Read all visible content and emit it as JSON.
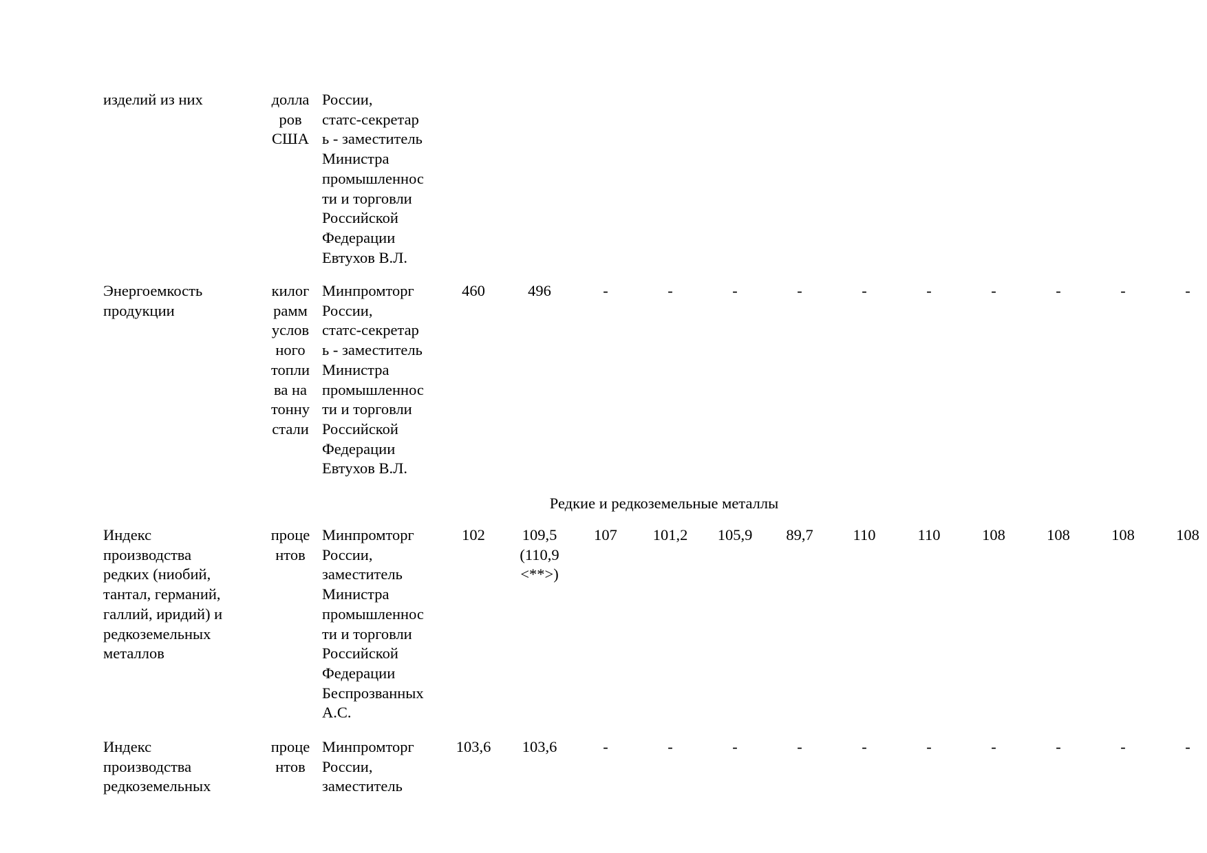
{
  "rows": [
    {
      "name": "изделий из них",
      "unit": "долла\nров\nСША",
      "responsible": "России,\nстатс-секретар\nь - заместитель\nМинистра\nпромышленнос\nти и торговли\nРоссийской\nФедерации\nЕвтухов В.Л.",
      "values": []
    },
    {
      "name": "Энергоемкость\nпродукции",
      "unit": "килог\nрамм\nуслов\nного\nтопли\nва на\nтонну\nстали",
      "responsible": "Минпромторг\nРоссии,\nстатс-секретар\nь - заместитель\nМинистра\nпромышленнос\nти и торговли\nРоссийской\nФедерации\nЕвтухов В.Л.",
      "values": [
        "460",
        "496",
        "-",
        "-",
        "-",
        "-",
        "-",
        "-",
        "-",
        "-",
        "-",
        "-"
      ]
    },
    {
      "name": "Индекс\nпроизводства\nредких (ниобий,\nтантал, германий,\nгаллий, иридий) и\nредкоземельных\nметаллов",
      "unit": "проце\nнтов",
      "responsible": "Минпромторг\nРоссии,\nзаместитель\nМинистра\nпромышленнос\nти и торговли\nРоссийской\nФедерации\nБеспрозванных\nА.С.",
      "values": [
        "102",
        "109,5\n(110,9\n<**>)",
        "107",
        "101,2",
        "105,9",
        "89,7",
        "110",
        "110",
        "108",
        "108",
        "108",
        "108"
      ]
    },
    {
      "name": "Индекс\nпроизводства\nредкоземельных",
      "unit": "проце\nнтов",
      "responsible": "Минпромторг\nРоссии,\nзаместитель",
      "values": [
        "103,6",
        "103,6",
        "-",
        "-",
        "-",
        "-",
        "-",
        "-",
        "-",
        "-",
        "-",
        "-"
      ]
    }
  ],
  "section_header": "Редкие и редкоземельные металлы"
}
